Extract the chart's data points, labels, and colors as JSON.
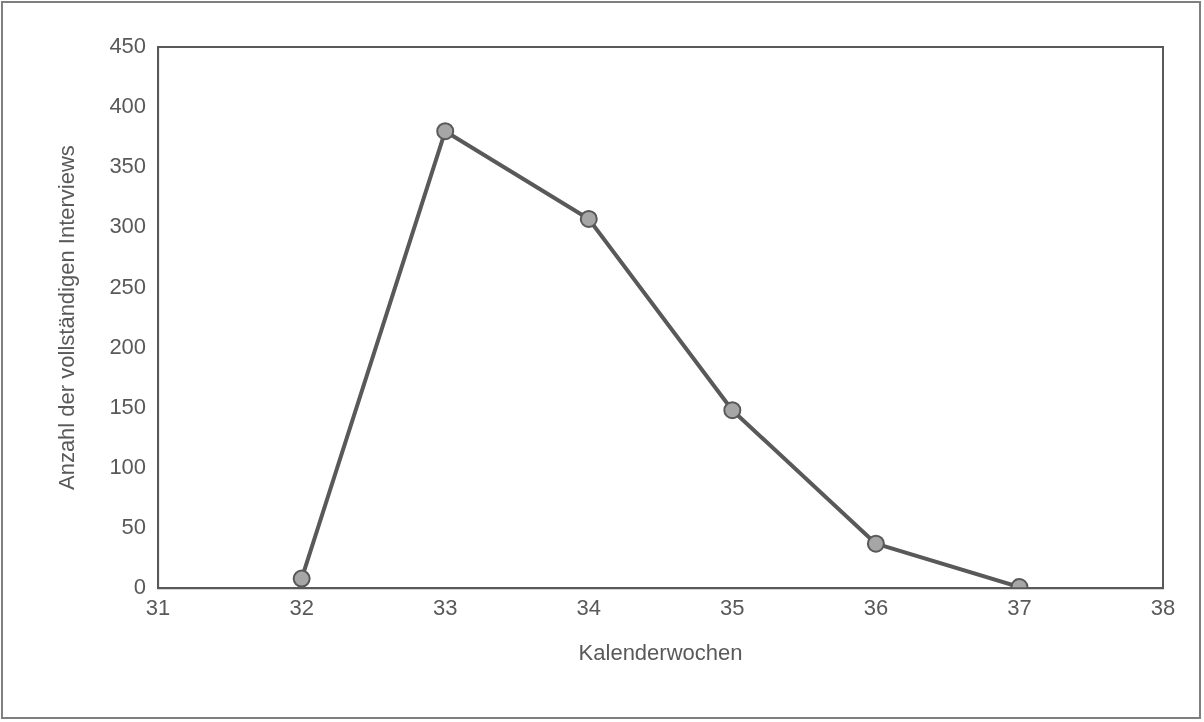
{
  "chart_data": {
    "type": "line",
    "xlabel": "Kalenderwochen",
    "ylabel": "Anzahl der vollständigen Interviews",
    "x": [
      32,
      33,
      34,
      35,
      36,
      37
    ],
    "series": [
      {
        "color": "#595959",
        "values": [
          8,
          380,
          307,
          148,
          37,
          1
        ]
      }
    ],
    "xlim": [
      31,
      38
    ],
    "xticks": [
      31,
      32,
      33,
      34,
      35,
      36,
      37,
      38
    ],
    "ylim": [
      0,
      450
    ],
    "yticks": [
      0,
      50,
      100,
      150,
      200,
      250,
      300,
      350,
      400,
      450
    ],
    "grid": false,
    "legend": false,
    "marker": "circle",
    "line_style": "solid"
  }
}
